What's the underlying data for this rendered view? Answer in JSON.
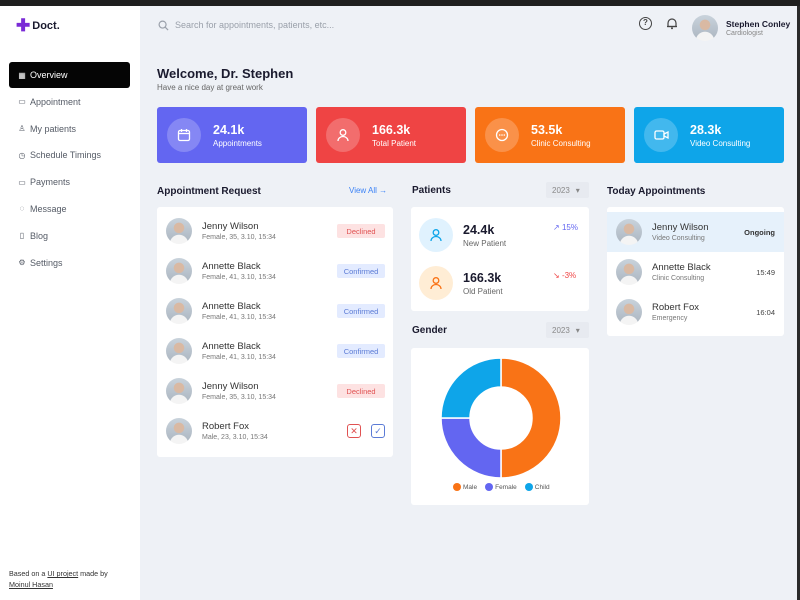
{
  "app": {
    "logo_text": "Doct."
  },
  "sidebar": {
    "items": [
      {
        "label": "Overview",
        "icon": "grid-icon",
        "glyph": "▦"
      },
      {
        "label": "Appointment",
        "icon": "calendar-icon",
        "glyph": "▭"
      },
      {
        "label": "My patients",
        "icon": "user-icon",
        "glyph": "♙"
      },
      {
        "label": "Schedule Timings",
        "icon": "clock-icon",
        "glyph": "◷"
      },
      {
        "label": "Payments",
        "icon": "card-icon",
        "glyph": "▭"
      },
      {
        "label": "Message",
        "icon": "chat-icon",
        "glyph": "◌"
      },
      {
        "label": "Blog",
        "icon": "document-icon",
        "glyph": "▯"
      },
      {
        "label": "Settings",
        "icon": "gear-icon",
        "glyph": "⚙"
      }
    ],
    "footer": {
      "prefix": "Based on a ",
      "link": "UI project",
      "middle": " made by ",
      "author": "Moinul Hasan"
    }
  },
  "search": {
    "placeholder": "Search for appointments, patients, etc..."
  },
  "user": {
    "name": "Stephen Conley",
    "role": "Cardiologist"
  },
  "welcome": {
    "title": "Welcome, Dr. Stephen",
    "subtitle": "Have a nice day at great work"
  },
  "stats": [
    {
      "value": "24.1k",
      "label": "Appointments",
      "icon": "calendar-icon",
      "color": "#6366f1"
    },
    {
      "value": "166.3k",
      "label": "Total Patient",
      "icon": "user-icon",
      "color": "#ef4444"
    },
    {
      "value": "53.5k",
      "label": "Clinic Consulting",
      "icon": "chat-icon",
      "color": "#f97316"
    },
    {
      "value": "28.3k",
      "label": "Video Consulting",
      "icon": "video-icon",
      "color": "#0ea5e9"
    }
  ],
  "appointment_request": {
    "title": "Appointment Request",
    "view_all": "View All",
    "rows": [
      {
        "name": "Jenny Wilson",
        "meta": "Female, 35, 3.10, 15:34",
        "status": "Declined"
      },
      {
        "name": "Annette Black",
        "meta": "Female, 41, 3.10, 15:34",
        "status": "Confirmed"
      },
      {
        "name": "Annette Black",
        "meta": "Female, 41, 3.10, 15:34",
        "status": "Confirmed"
      },
      {
        "name": "Annette Black",
        "meta": "Female, 41, 3.10, 15:34",
        "status": "Confirmed"
      },
      {
        "name": "Jenny Wilson",
        "meta": "Female, 35, 3.10, 15:34",
        "status": "Declined"
      },
      {
        "name": "Robert Fox",
        "meta": "Male, 23, 3.10, 15:34",
        "status": ""
      }
    ]
  },
  "patients": {
    "title": "Patients",
    "year": "2023",
    "new": {
      "value": "24.4k",
      "label": "New Patient",
      "trend": "15%",
      "trend_color": "#6366f1"
    },
    "old": {
      "value": "166.3k",
      "label": "Old Patient",
      "trend": "-3%",
      "trend_color": "#ef4444"
    }
  },
  "gender": {
    "title": "Gender",
    "year": "2023",
    "colors": {
      "Male": "#f97316",
      "Female": "#6366f1",
      "Child": "#0ea5e9"
    }
  },
  "chart_data": {
    "type": "pie",
    "categories": [
      "Male",
      "Female",
      "Child"
    ],
    "values": [
      50,
      25,
      25
    ],
    "legend": "bottom"
  },
  "today": {
    "title": "Today Appointments",
    "rows": [
      {
        "name": "Jenny Wilson",
        "type": "Video Consulting",
        "time": "Ongoing"
      },
      {
        "name": "Annette Black",
        "type": "Clinic Consulting",
        "time": "15:49"
      },
      {
        "name": "Robert Fox",
        "type": "Emergency",
        "time": "16:04"
      }
    ]
  }
}
